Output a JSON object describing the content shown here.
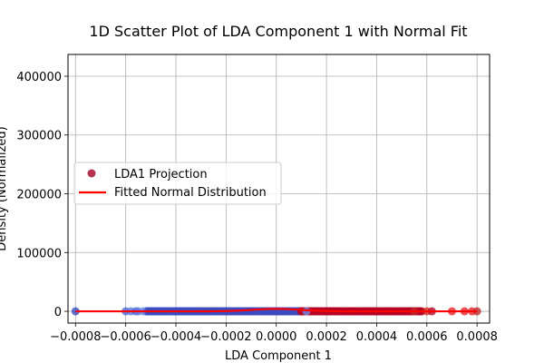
{
  "chart_data": {
    "type": "scatter",
    "title": "1D Scatter Plot of LDA Component 1 with Normal Fit",
    "xlabel": "LDA Component 1",
    "ylabel": "Density (Normalized)",
    "xlim": [
      -0.00083,
      0.00085
    ],
    "ylim": [
      -20000,
      437000
    ],
    "x_ticks": [
      -0.0008,
      -0.0006,
      -0.0004,
      -0.0002,
      0.0,
      0.0002,
      0.0004,
      0.0006,
      0.0008
    ],
    "x_tick_labels": [
      "−0.0008",
      "−0.0006",
      "−0.0004",
      "−0.0002",
      "0.0000",
      "0.0002",
      "0.0004",
      "0.0006",
      "0.0008"
    ],
    "y_ticks": [
      0,
      100000,
      200000,
      300000,
      400000
    ],
    "y_tick_labels": [
      "0",
      "100000",
      "200000",
      "300000",
      "400000"
    ],
    "grid": true,
    "legend_position": "center-left",
    "series": [
      {
        "name": "LDA1 Projection",
        "kind": "scatter",
        "y": 0,
        "x": [
          -0.0008,
          -0.0006,
          -0.00058,
          -0.00056,
          -0.00055,
          -0.00053,
          -0.00051,
          -0.0005,
          -0.00048,
          -0.00045,
          -0.0004,
          -0.00035,
          -0.0003,
          -0.00025,
          -0.0002,
          -0.00015,
          -0.0001,
          -5e-05,
          0.0,
          5e-05,
          0.0001,
          0.00012,
          0.00015,
          0.0002,
          0.00025,
          0.0003,
          0.00035,
          0.0004,
          0.00045,
          0.0005,
          0.00055,
          0.0006,
          0.00062,
          0.0007,
          0.00075,
          0.00078,
          0.0008
        ],
        "colors": [
          "#3b4cc0",
          "#4a64d6",
          "#5a78e0",
          "#4a64d6",
          "#5a78e0",
          "#6e8ee8",
          "#3b4cc0",
          "#3b4cc0",
          "#3b4cc0",
          "#3b4cc0",
          "#3b4cc0",
          "#3b4cc0",
          "#3b4cc0",
          "#3b4cc0",
          "#3b4cc0",
          "#3b4cc0",
          "#3b4cc0",
          "#3b4cc0",
          "#3b4cc0",
          "#3b4cc0",
          "#b40426",
          "#6e8ee8",
          "#b40426",
          "#b40426",
          "#b40426",
          "#b40426",
          "#b40426",
          "#b40426",
          "#b40426",
          "#b40426",
          "#c0282d",
          "#d7301f",
          "#b40426",
          "#e8232a",
          "#e8232a",
          "#e8232a",
          "#c0282d"
        ]
      },
      {
        "name": "Fitted Normal Distribution",
        "kind": "line",
        "color": "#ff0000",
        "mu": 0.0,
        "sigma": 9.6e-05,
        "x_range": [
          -0.0008,
          0.0008
        ]
      }
    ]
  },
  "colors": {
    "grid": "#b0b0b0",
    "fit_line": "#ff0000",
    "legend_marker": "#b5334f"
  }
}
